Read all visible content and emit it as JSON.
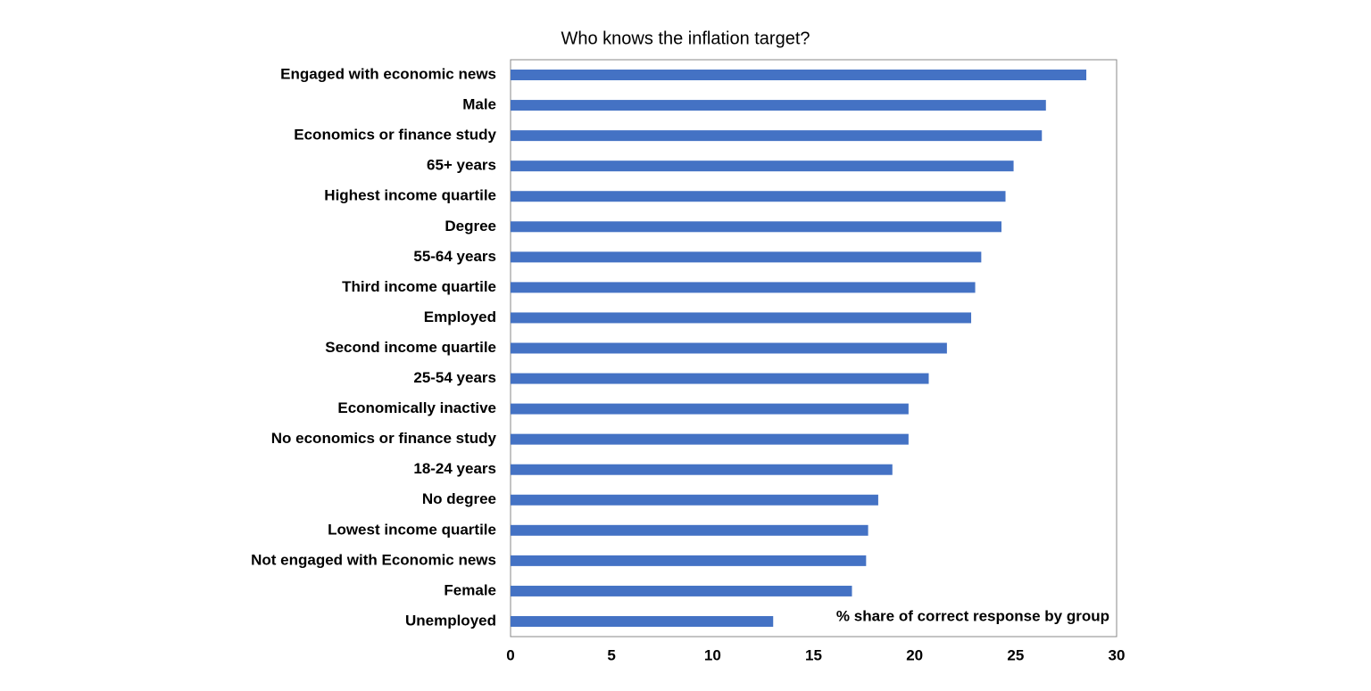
{
  "chart_data": {
    "type": "bar",
    "orientation": "horizontal",
    "title": "Who knows the inflation target?",
    "annotation": "% share of correct response by group",
    "categories": [
      "Engaged with economic news",
      "Male",
      "Economics or finance study",
      "65+ years",
      "Highest income quartile",
      "Degree",
      "55-64 years",
      "Third income quartile",
      "Employed",
      "Second income quartile",
      "25-54 years",
      "Economically inactive",
      "No economics or finance study",
      "18-24 years",
      "No degree",
      "Lowest income quartile",
      "Not engaged with Economic news",
      "Female",
      "Unemployed"
    ],
    "values": [
      28.5,
      26.5,
      26.3,
      24.9,
      24.5,
      24.3,
      23.3,
      23.0,
      22.8,
      21.6,
      20.7,
      19.7,
      19.7,
      18.9,
      18.2,
      17.7,
      17.6,
      16.9,
      13.0
    ],
    "color": "#4472c4",
    "xlim": [
      0,
      30
    ],
    "xticks": [
      0,
      5,
      10,
      15,
      20,
      25,
      30
    ],
    "grid": false
  }
}
